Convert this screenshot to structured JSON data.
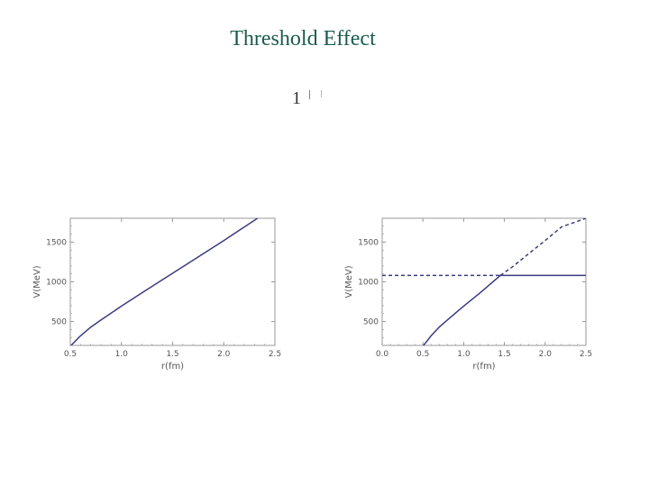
{
  "slide": {
    "title": "Threshold Effect",
    "formula_fragment": "1"
  },
  "colors": {
    "title": "#1a5c4f",
    "curve": "#3b3b80",
    "frame": "#999999"
  },
  "chart_data": [
    {
      "type": "line",
      "xlabel": "r(fm)",
      "ylabel": "V(MeV)",
      "xlim": [
        0.5,
        2.5
      ],
      "ylim": [
        200,
        1800
      ],
      "xticks": [
        "0.5",
        "1.0",
        "1.5",
        "2.0",
        "2.5"
      ],
      "yticks": [
        "500",
        "1000",
        "1500"
      ],
      "grid": false,
      "series": [
        {
          "style": "solid",
          "x": [
            0.5,
            0.6,
            0.7,
            0.8,
            1.0,
            1.2,
            1.4,
            1.6,
            1.8,
            2.0,
            2.2,
            2.33
          ],
          "y": [
            190,
            320,
            430,
            520,
            695,
            860,
            1025,
            1190,
            1355,
            1520,
            1690,
            1800
          ]
        }
      ]
    },
    {
      "type": "line",
      "xlabel": "r(fm)",
      "ylabel": "V(MeV)",
      "xlim": [
        0.0,
        2.5
      ],
      "ylim": [
        200,
        1800
      ],
      "xticks": [
        "0.0",
        "0.5",
        "1.0",
        "1.5",
        "2.0",
        "2.5"
      ],
      "yticks": [
        "500",
        "1000",
        "1500"
      ],
      "grid": false,
      "series": [
        {
          "style": "solid",
          "x": [
            0.5,
            0.6,
            0.7,
            0.8,
            1.0,
            1.2,
            1.45,
            1.5,
            2.0,
            2.5
          ],
          "y": [
            190,
            320,
            430,
            520,
            695,
            860,
            1080,
            1080,
            1080,
            1080
          ]
        },
        {
          "style": "dashed",
          "x": [
            1.45,
            1.6,
            1.8,
            2.0,
            2.2,
            2.5
          ],
          "y": [
            1080,
            1190,
            1355,
            1520,
            1690,
            1800
          ]
        },
        {
          "style": "dashed",
          "x": [
            0.0,
            1.45
          ],
          "y": [
            1080,
            1080
          ]
        }
      ]
    }
  ]
}
